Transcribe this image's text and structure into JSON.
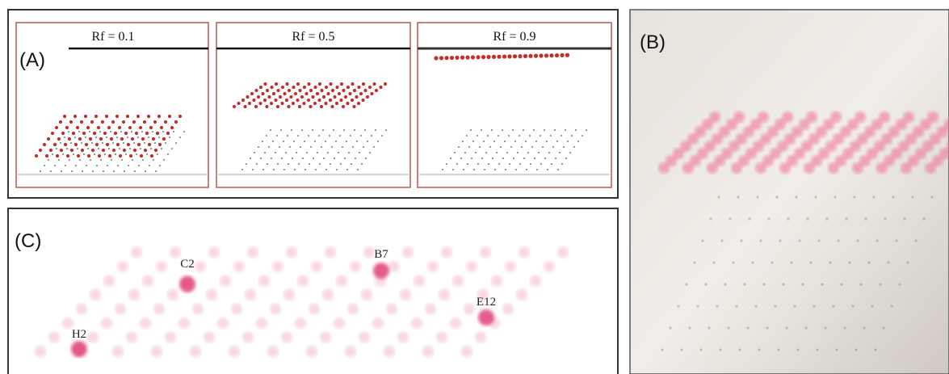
{
  "panel_a": {
    "label": "(A)",
    "plates": [
      {
        "label": "Rf = 0.1"
      },
      {
        "label": "Rf = 0.5"
      },
      {
        "label": "Rf = 0.9"
      }
    ]
  },
  "panel_b": {
    "label": "(B)"
  },
  "panel_c": {
    "label": "(C)",
    "spots": [
      {
        "label": "H2"
      },
      {
        "label": "C2"
      },
      {
        "label": "B7"
      },
      {
        "label": "E12"
      }
    ]
  }
}
